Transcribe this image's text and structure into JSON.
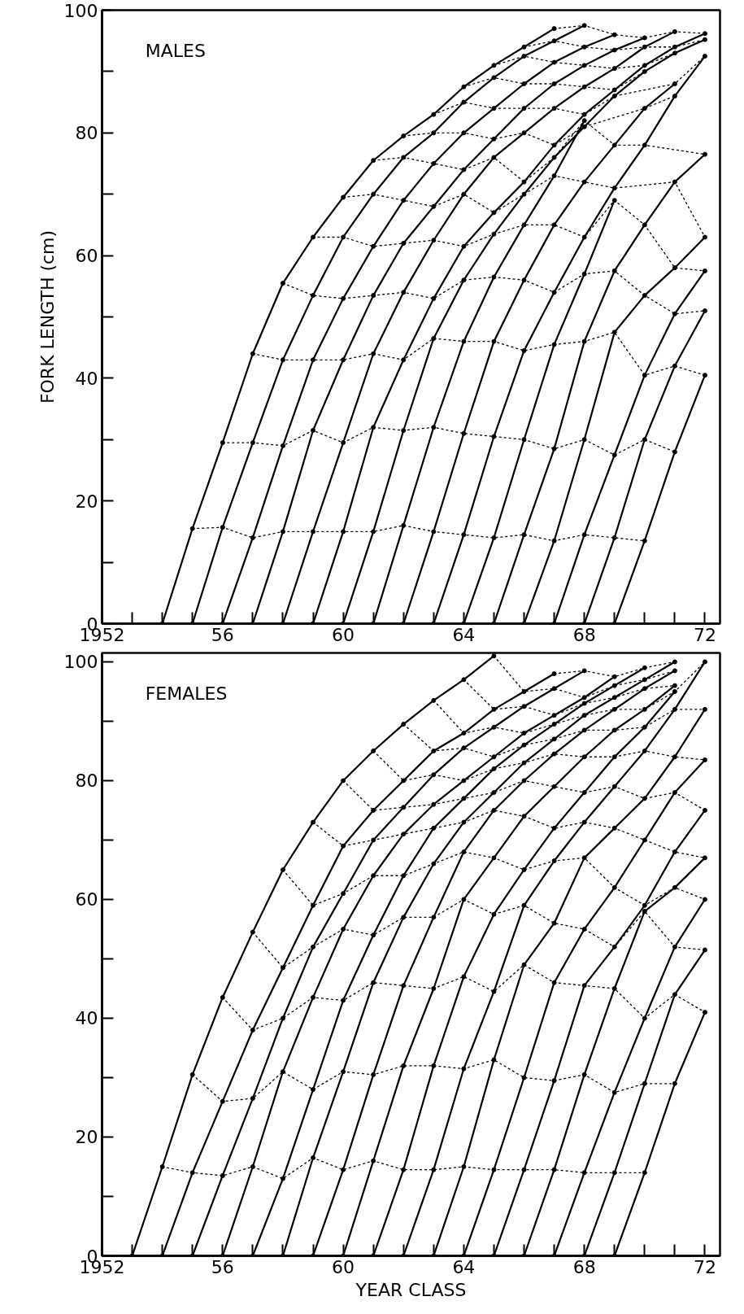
{
  "chart_data": [
    {
      "type": "line",
      "title": "MALES",
      "ylabel": "FORK LENGTH (cm)",
      "xlim": [
        1952,
        1972.5
      ],
      "ylim": [
        0,
        100
      ],
      "grid": false,
      "xticks": [
        {
          "value": 1952,
          "label": "1952"
        },
        {
          "value": 1953,
          "label": null
        },
        {
          "value": 1954,
          "label": null
        },
        {
          "value": 1955,
          "label": null
        },
        {
          "value": 1956,
          "label": "56"
        },
        {
          "value": 1957,
          "label": null
        },
        {
          "value": 1958,
          "label": null
        },
        {
          "value": 1959,
          "label": null
        },
        {
          "value": 1960,
          "label": "60"
        },
        {
          "value": 1961,
          "label": null
        },
        {
          "value": 1962,
          "label": null
        },
        {
          "value": 1963,
          "label": null
        },
        {
          "value": 1964,
          "label": "64"
        },
        {
          "value": 1965,
          "label": null
        },
        {
          "value": 1966,
          "label": null
        },
        {
          "value": 1967,
          "label": null
        },
        {
          "value": 1968,
          "label": "68"
        },
        {
          "value": 1969,
          "label": null
        },
        {
          "value": 1970,
          "label": null
        },
        {
          "value": 1971,
          "label": null
        },
        {
          "value": 1972,
          "label": "72"
        }
      ],
      "yticks": [
        0,
        {
          "value": 10,
          "label": null
        },
        20,
        {
          "value": 30,
          "label": null
        },
        40,
        {
          "value": 50,
          "label": null
        },
        60,
        {
          "value": 70,
          "label": null
        },
        80,
        {
          "value": 90,
          "label": null
        },
        100
      ],
      "series": [
        {
          "color": "#000000",
          "marker": "circle",
          "line_style": "solid",
          "x": [
            1954,
            1955,
            1956,
            1957,
            1958,
            1959,
            1960,
            1961,
            1962,
            1963,
            1964,
            1965,
            1966,
            1967
          ],
          "values": [
            0,
            15.5,
            29.5,
            44,
            55.5,
            63,
            69.5,
            75.5,
            79.5,
            83,
            87.5,
            91,
            94,
            97
          ]
        },
        {
          "color": "#000000",
          "marker": "circle",
          "line_style": "solid",
          "x": [
            1955,
            1956,
            1957,
            1958,
            1959,
            1960,
            1961,
            1962,
            1963,
            1964,
            1965,
            1966,
            1967,
            1968
          ],
          "values": [
            0,
            15.7,
            29.5,
            43,
            53.5,
            63,
            70,
            76,
            80,
            85,
            89,
            92.5,
            95,
            97.5
          ]
        },
        {
          "color": "#000000",
          "marker": "circle",
          "line_style": "solid",
          "x": [
            1956,
            1957,
            1958,
            1959,
            1960,
            1961,
            1962,
            1963,
            1964,
            1965,
            1966,
            1967,
            1968,
            1969
          ],
          "values": [
            0,
            14,
            29,
            43,
            53,
            61.5,
            69,
            75,
            80,
            84,
            88,
            91.5,
            94,
            96
          ]
        },
        {
          "color": "#000000",
          "marker": "circle",
          "line_style": "solid",
          "x": [
            1957,
            1958,
            1959,
            1960,
            1961,
            1962,
            1963,
            1964,
            1965,
            1966,
            1967,
            1968,
            1969,
            1970
          ],
          "values": [
            0,
            15,
            31.5,
            43,
            53.5,
            62,
            68,
            74,
            79,
            84,
            88,
            91,
            93.5,
            95.5
          ]
        },
        {
          "color": "#000000",
          "marker": "circle",
          "line_style": "solid",
          "x": [
            1958,
            1959,
            1960,
            1961,
            1962,
            1963,
            1964,
            1965,
            1966,
            1967,
            1968,
            1969,
            1970,
            1971
          ],
          "values": [
            0,
            15,
            29.5,
            44,
            54,
            62.5,
            70,
            76,
            80,
            84,
            87.5,
            90.5,
            94,
            96.5
          ]
        },
        {
          "color": "#000000",
          "marker": "circle",
          "line_style": "solid",
          "x": [
            1959,
            1960,
            1961,
            1962,
            1963,
            1964,
            1965,
            1966,
            1967,
            1968,
            1969,
            1970,
            1971,
            1972
          ],
          "values": [
            0,
            15,
            32,
            43,
            53,
            61.5,
            67,
            72,
            78,
            83,
            87,
            91,
            94,
            96.2
          ]
        },
        {
          "color": "#000000",
          "marker": "circle",
          "line_style": "solid",
          "x": [
            1960,
            1961,
            1962,
            1963,
            1964,
            1965,
            1966,
            1967,
            1968,
            1969,
            1970,
            1971,
            1972
          ],
          "values": [
            0,
            15,
            31.5,
            46.5,
            56,
            63.5,
            70,
            76,
            81,
            86,
            90,
            93,
            95.2
          ]
        },
        {
          "color": "#000000",
          "marker": "circle",
          "line_style": "solid",
          "x": [
            1961,
            1962,
            1963,
            1964,
            1965,
            1966,
            1967,
            1968
          ],
          "values": [
            0,
            16,
            32,
            46,
            56.5,
            65,
            73,
            82
          ]
        },
        {
          "color": "#000000",
          "marker": "circle",
          "line_style": "solid",
          "x": [
            1962,
            1963,
            1964,
            1965,
            1966,
            1967,
            1968,
            1969,
            1970,
            1971
          ],
          "values": [
            0,
            15,
            31,
            46,
            56,
            65,
            72,
            78,
            84,
            88
          ]
        },
        {
          "color": "#000000",
          "marker": "circle",
          "line_style": "solid",
          "x": [
            1963,
            1964,
            1965,
            1966,
            1967,
            1968,
            1969,
            1970,
            1971,
            1972
          ],
          "values": [
            0,
            14.5,
            30.5,
            44.5,
            54,
            63,
            71,
            78,
            86,
            92.5
          ]
        },
        {
          "color": "#000000",
          "marker": "circle",
          "line_style": "solid",
          "x": [
            1964,
            1965,
            1966,
            1967,
            1968,
            1969
          ],
          "values": [
            0,
            14,
            30,
            45.5,
            57,
            69
          ]
        },
        {
          "color": "#000000",
          "marker": "circle",
          "line_style": "solid",
          "x": [
            1965,
            1966,
            1967,
            1968,
            1969,
            1970,
            1971,
            1972
          ],
          "values": [
            0,
            14.5,
            28.5,
            46,
            57.5,
            65,
            72,
            76.5
          ]
        },
        {
          "color": "#000000",
          "marker": "circle",
          "line_style": "solid",
          "x": [
            1966,
            1967,
            1968,
            1969,
            1970,
            1971,
            1972
          ],
          "values": [
            0,
            13.5,
            30,
            47.5,
            53.5,
            58,
            63
          ]
        },
        {
          "color": "#000000",
          "marker": "circle",
          "line_style": "solid",
          "x": [
            1967,
            1968,
            1969,
            1970,
            1971,
            1972
          ],
          "values": [
            0,
            14.5,
            27.5,
            40.5,
            50.5,
            57.5
          ]
        },
        {
          "color": "#000000",
          "marker": "circle",
          "line_style": "solid",
          "x": [
            1968,
            1969,
            1970,
            1971,
            1972
          ],
          "values": [
            0,
            14,
            30,
            42,
            51
          ]
        },
        {
          "color": "#000000",
          "marker": "circle",
          "line_style": "solid",
          "x": [
            1969,
            1970,
            1971,
            1972
          ],
          "values": [
            0,
            13.5,
            28,
            40.5
          ]
        },
        {
          "color": "#000000",
          "marker": "none",
          "line_style": "dotted",
          "x": [
            1955,
            1956,
            1957,
            1958,
            1959,
            1960,
            1961,
            1962,
            1963,
            1964,
            1965,
            1966,
            1967,
            1968,
            1969,
            1970
          ],
          "values": [
            15.5,
            15.7,
            14,
            15,
            15,
            15,
            15,
            16,
            15,
            14.5,
            14,
            14.5,
            13.5,
            14.5,
            14,
            13.5
          ]
        },
        {
          "color": "#000000",
          "marker": "none",
          "line_style": "dotted",
          "x": [
            1956,
            1957,
            1958,
            1959,
            1960,
            1961,
            1962,
            1963,
            1964,
            1965,
            1966,
            1967,
            1968,
            1969,
            1970,
            1971
          ],
          "values": [
            29.5,
            29.5,
            29,
            31.5,
            29.5,
            32,
            31.5,
            32,
            31,
            30.5,
            30,
            28.5,
            30,
            27.5,
            30,
            28
          ]
        },
        {
          "color": "#000000",
          "marker": "none",
          "line_style": "dotted",
          "x": [
            1957,
            1958,
            1959,
            1960,
            1961,
            1962,
            1963,
            1964,
            1965,
            1966,
            1967,
            1968,
            1969,
            1970,
            1971,
            1972
          ],
          "values": [
            44,
            43,
            43,
            43,
            44,
            43,
            46.5,
            46,
            46,
            44.5,
            45.5,
            46,
            47.5,
            40.5,
            42,
            40.5
          ]
        },
        {
          "color": "#000000",
          "marker": "none",
          "line_style": "dotted",
          "x": [
            1958,
            1959,
            1960,
            1961,
            1962,
            1963,
            1964,
            1965,
            1966,
            1967,
            1968,
            1969,
            1970,
            1971,
            1972
          ],
          "values": [
            55.5,
            53.5,
            53,
            53.5,
            54,
            53,
            56,
            56.5,
            56,
            54,
            57,
            57.5,
            53.5,
            50.5,
            51
          ]
        },
        {
          "color": "#000000",
          "marker": "none",
          "line_style": "dotted",
          "x": [
            1959,
            1960,
            1961,
            1962,
            1963,
            1964,
            1965,
            1966,
            1967,
            1968,
            1969,
            1970,
            1971,
            1972
          ],
          "values": [
            63,
            63,
            61.5,
            62,
            62.5,
            61.5,
            63.5,
            65,
            65,
            63,
            69,
            65,
            58,
            57.5
          ]
        },
        {
          "color": "#000000",
          "marker": "none",
          "line_style": "dotted",
          "x": [
            1960,
            1961,
            1962,
            1963,
            1964,
            1965,
            1966,
            1967,
            1968,
            1969,
            1971,
            1972
          ],
          "values": [
            69.5,
            70,
            69,
            68,
            70,
            67,
            70,
            73,
            72,
            71,
            72,
            63
          ]
        },
        {
          "color": "#000000",
          "marker": "none",
          "line_style": "dotted",
          "x": [
            1961,
            1962,
            1963,
            1964,
            1965,
            1966,
            1967,
            1968,
            1969,
            1970,
            1972
          ],
          "values": [
            75.5,
            76,
            75,
            74,
            76,
            72,
            76,
            82,
            78,
            78,
            76.5
          ]
        },
        {
          "color": "#000000",
          "marker": "none",
          "line_style": "dotted",
          "x": [
            1962,
            1963,
            1964,
            1965,
            1966,
            1967,
            1968,
            1970,
            1971
          ],
          "values": [
            79.5,
            80,
            80,
            79,
            80,
            78,
            81,
            84,
            86
          ]
        },
        {
          "color": "#000000",
          "marker": "none",
          "line_style": "dotted",
          "x": [
            1963,
            1964,
            1965,
            1966,
            1967,
            1968,
            1969,
            1971,
            1972
          ],
          "values": [
            83,
            85,
            84,
            84,
            84,
            83,
            86,
            88,
            92.5
          ]
        },
        {
          "color": "#000000",
          "marker": "none",
          "line_style": "dotted",
          "x": [
            1964,
            1965,
            1966,
            1967,
            1968,
            1969,
            1970
          ],
          "values": [
            87.5,
            89,
            88,
            88,
            87.5,
            87,
            90
          ]
        },
        {
          "color": "#000000",
          "marker": "none",
          "line_style": "dotted",
          "x": [
            1965,
            1966,
            1967,
            1968,
            1969,
            1970,
            1971
          ],
          "values": [
            91,
            92.5,
            91.5,
            91,
            90.5,
            91,
            93
          ]
        },
        {
          "color": "#000000",
          "marker": "none",
          "line_style": "dotted",
          "x": [
            1966,
            1967,
            1968,
            1969,
            1970,
            1971,
            1972
          ],
          "values": [
            94,
            95,
            94,
            93.5,
            94,
            94,
            95.2
          ]
        },
        {
          "color": "#000000",
          "marker": "none",
          "line_style": "dotted",
          "x": [
            1967,
            1968,
            1969,
            1970,
            1971,
            1972
          ],
          "values": [
            97,
            97.5,
            96,
            95.5,
            96.5,
            96.2
          ]
        }
      ]
    },
    {
      "type": "line",
      "title": "FEMALES",
      "xlabel": "YEAR CLASS",
      "xlim": [
        1952,
        1972.5
      ],
      "ylim": [
        0,
        101.5
      ],
      "grid": false,
      "xticks": [
        {
          "value": 1952,
          "label": "1952"
        },
        {
          "value": 1953,
          "label": null
        },
        {
          "value": 1954,
          "label": null
        },
        {
          "value": 1955,
          "label": null
        },
        {
          "value": 1956,
          "label": "56"
        },
        {
          "value": 1957,
          "label": null
        },
        {
          "value": 1958,
          "label": null
        },
        {
          "value": 1959,
          "label": null
        },
        {
          "value": 1960,
          "label": "60"
        },
        {
          "value": 1961,
          "label": null
        },
        {
          "value": 1962,
          "label": null
        },
        {
          "value": 1963,
          "label": null
        },
        {
          "value": 1964,
          "label": "64"
        },
        {
          "value": 1965,
          "label": null
        },
        {
          "value": 1966,
          "label": null
        },
        {
          "value": 1967,
          "label": null
        },
        {
          "value": 1968,
          "label": "68"
        },
        {
          "value": 1969,
          "label": null
        },
        {
          "value": 1970,
          "label": null
        },
        {
          "value": 1971,
          "label": null
        },
        {
          "value": 1972,
          "label": "72"
        }
      ],
      "yticks": [
        0,
        {
          "value": 10,
          "label": null
        },
        20,
        {
          "value": 30,
          "label": null
        },
        40,
        {
          "value": 50,
          "label": null
        },
        60,
        {
          "value": 70,
          "label": null
        },
        80,
        {
          "value": 90,
          "label": null
        },
        100
      ],
      "series": [
        {
          "color": "#000000",
          "marker": "circle",
          "line_style": "solid",
          "x": [
            1953,
            1954,
            1955,
            1956,
            1957,
            1958,
            1959,
            1960,
            1961,
            1962,
            1963,
            1964,
            1965
          ],
          "values": [
            0,
            15,
            30.5,
            43.5,
            54.5,
            65,
            73,
            80,
            85,
            89.5,
            93.5,
            97,
            101
          ]
        },
        {
          "color": "#000000",
          "marker": "circle",
          "line_style": "solid",
          "x": [
            1954,
            1955,
            1956,
            1957,
            1958,
            1959,
            1960,
            1961,
            1962,
            1963,
            1964,
            1965,
            1966,
            1967
          ],
          "values": [
            0,
            14,
            26,
            38,
            48.5,
            59,
            69,
            75,
            80,
            85,
            88,
            92,
            95,
            98
          ]
        },
        {
          "color": "#000000",
          "marker": "circle",
          "line_style": "solid",
          "x": [
            1955,
            1956,
            1957,
            1958,
            1959,
            1960,
            1961,
            1962,
            1963,
            1964,
            1965,
            1966,
            1967,
            1968
          ],
          "values": [
            0,
            13.5,
            26.5,
            40,
            52,
            61,
            70,
            75.5,
            81,
            85.5,
            89,
            92.5,
            95.5,
            98.5
          ]
        },
        {
          "color": "#000000",
          "marker": "circle",
          "line_style": "solid",
          "x": [
            1956,
            1957,
            1958,
            1959,
            1960,
            1961,
            1962,
            1963,
            1964,
            1965,
            1966,
            1967,
            1968,
            1969
          ],
          "values": [
            0,
            15,
            31,
            43.5,
            55,
            64,
            71,
            76,
            80,
            84,
            88,
            91,
            94,
            97.5
          ]
        },
        {
          "color": "#000000",
          "marker": "circle",
          "line_style": "solid",
          "x": [
            1957,
            1958,
            1959,
            1960,
            1961,
            1962,
            1963,
            1964,
            1965,
            1966,
            1967,
            1968,
            1969,
            1970
          ],
          "values": [
            0,
            13,
            28,
            43,
            54,
            64,
            72,
            77,
            82,
            86,
            89.5,
            93,
            96,
            99
          ]
        },
        {
          "color": "#000000",
          "marker": "circle",
          "line_style": "solid",
          "x": [
            1958,
            1959,
            1960,
            1961,
            1962,
            1963,
            1964,
            1965,
            1966,
            1967,
            1968,
            1969,
            1970,
            1971
          ],
          "values": [
            0,
            16.5,
            31,
            46,
            57,
            66,
            73,
            78,
            83,
            87,
            91,
            94,
            97,
            100
          ]
        },
        {
          "color": "#000000",
          "marker": "circle",
          "line_style": "solid",
          "x": [
            1959,
            1960,
            1961,
            1962,
            1963,
            1964,
            1965,
            1966,
            1967,
            1968,
            1969,
            1970,
            1971
          ],
          "values": [
            0,
            14.5,
            30.5,
            45.5,
            57,
            68,
            75,
            80,
            84.5,
            88.5,
            92,
            95.5,
            98.5
          ]
        },
        {
          "color": "#000000",
          "marker": "circle",
          "line_style": "solid",
          "x": [
            1960,
            1961,
            1962,
            1963,
            1964,
            1965,
            1966,
            1967,
            1968,
            1969,
            1970,
            1971
          ],
          "values": [
            0,
            16,
            32,
            45,
            60,
            67,
            74,
            79,
            84,
            88.5,
            92,
            96
          ]
        },
        {
          "color": "#000000",
          "marker": "circle",
          "line_style": "solid",
          "x": [
            1961,
            1962,
            1963,
            1964,
            1965,
            1966,
            1967,
            1968,
            1969,
            1970,
            1971
          ],
          "values": [
            0,
            14.5,
            32,
            47,
            57.5,
            65,
            72,
            78,
            84,
            89,
            95
          ]
        },
        {
          "color": "#000000",
          "marker": "circle",
          "line_style": "solid",
          "x": [
            1962,
            1963,
            1964,
            1965,
            1966,
            1967,
            1968,
            1969,
            1970,
            1971,
            1972
          ],
          "values": [
            0,
            14.5,
            31.5,
            44.5,
            59,
            66.5,
            73,
            79,
            85,
            92,
            100
          ]
        },
        {
          "color": "#000000",
          "marker": "circle",
          "line_style": "solid",
          "x": [
            1963,
            1964,
            1965,
            1966,
            1967,
            1968,
            1969,
            1970,
            1971,
            1972
          ],
          "values": [
            0,
            15,
            33,
            49,
            56,
            67,
            72,
            77,
            84,
            92
          ]
        },
        {
          "color": "#000000",
          "marker": "circle",
          "line_style": "solid",
          "x": [
            1964,
            1965,
            1966,
            1967,
            1968,
            1969,
            1970,
            1971,
            1972
          ],
          "values": [
            0,
            14.5,
            30,
            46,
            55,
            62,
            70,
            78,
            83.5
          ]
        },
        {
          "color": "#000000",
          "marker": "circle",
          "line_style": "solid",
          "x": [
            1965,
            1966,
            1967,
            1968,
            1969,
            1970,
            1971,
            1972
          ],
          "values": [
            0,
            14.5,
            29.5,
            45.5,
            52,
            59,
            68,
            75
          ]
        },
        {
          "color": "#000000",
          "marker": "circle",
          "line_style": "solid",
          "x": [
            1966,
            1967,
            1968,
            1969,
            1970,
            1971,
            1972
          ],
          "values": [
            0,
            14.5,
            30.5,
            45,
            58,
            62,
            67
          ]
        },
        {
          "color": "#000000",
          "marker": "circle",
          "line_style": "solid",
          "x": [
            1967,
            1968,
            1969,
            1970,
            1971,
            1972
          ],
          "values": [
            0,
            14,
            27.5,
            40,
            52,
            60
          ]
        },
        {
          "color": "#000000",
          "marker": "circle",
          "line_style": "solid",
          "x": [
            1968,
            1969,
            1970,
            1971,
            1972
          ],
          "values": [
            0,
            14,
            29,
            44,
            51.5
          ]
        },
        {
          "color": "#000000",
          "marker": "circle",
          "line_style": "solid",
          "x": [
            1969,
            1970,
            1971,
            1972
          ],
          "values": [
            0,
            14,
            29,
            41
          ]
        },
        {
          "color": "#000000",
          "marker": "none",
          "line_style": "dotted",
          "x": [
            1954,
            1955,
            1956,
            1957,
            1958,
            1959,
            1960,
            1961,
            1962,
            1963,
            1964,
            1965,
            1966,
            1967,
            1968,
            1969,
            1970
          ],
          "values": [
            15,
            14,
            13.5,
            15,
            13,
            16.5,
            14.5,
            16,
            14.5,
            14.5,
            15,
            14.5,
            14.5,
            14.5,
            14,
            14,
            14
          ]
        },
        {
          "color": "#000000",
          "marker": "none",
          "line_style": "dotted",
          "x": [
            1955,
            1956,
            1957,
            1958,
            1959,
            1960,
            1961,
            1962,
            1963,
            1964,
            1965,
            1966,
            1967,
            1968,
            1969,
            1970,
            1971
          ],
          "values": [
            30.5,
            26,
            26.5,
            31,
            28,
            31,
            30.5,
            32,
            32,
            31.5,
            33,
            30,
            29.5,
            30.5,
            27.5,
            29,
            29
          ]
        },
        {
          "color": "#000000",
          "marker": "none",
          "line_style": "dotted",
          "x": [
            1956,
            1957,
            1958,
            1959,
            1960,
            1961,
            1962,
            1963,
            1964,
            1965,
            1966,
            1967,
            1968,
            1969,
            1970,
            1971,
            1972
          ],
          "values": [
            43.5,
            38,
            40,
            43.5,
            43,
            46,
            45.5,
            45,
            47,
            44.5,
            49,
            46,
            45.5,
            45,
            40,
            44,
            41
          ]
        },
        {
          "color": "#000000",
          "marker": "none",
          "line_style": "dotted",
          "x": [
            1957,
            1958,
            1959,
            1960,
            1961,
            1962,
            1963,
            1964,
            1965,
            1966,
            1967,
            1968,
            1969,
            1970,
            1971,
            1972
          ],
          "values": [
            54.5,
            48.5,
            52,
            55,
            54,
            57,
            57,
            60,
            57.5,
            59,
            56,
            55,
            52,
            58,
            52,
            51.5
          ]
        },
        {
          "color": "#000000",
          "marker": "none",
          "line_style": "dotted",
          "x": [
            1958,
            1959,
            1960,
            1961,
            1962,
            1963,
            1964,
            1965,
            1966,
            1967,
            1968,
            1969,
            1970,
            1971,
            1972
          ],
          "values": [
            65,
            59,
            61,
            64,
            64,
            66,
            68,
            67,
            65,
            66.5,
            67,
            62,
            59,
            62,
            60
          ]
        },
        {
          "color": "#000000",
          "marker": "none",
          "line_style": "dotted",
          "x": [
            1959,
            1960,
            1961,
            1962,
            1963,
            1964,
            1965,
            1966,
            1967,
            1968,
            1969,
            1970,
            1971,
            1972
          ],
          "values": [
            73,
            69,
            70,
            71,
            72,
            73,
            75,
            74,
            72,
            73,
            72,
            70,
            68,
            67
          ]
        },
        {
          "color": "#000000",
          "marker": "none",
          "line_style": "dotted",
          "x": [
            1960,
            1961,
            1962,
            1963,
            1964,
            1965,
            1966,
            1967,
            1968,
            1969,
            1970,
            1971,
            1972
          ],
          "values": [
            80,
            75,
            75.5,
            76,
            77,
            78,
            80,
            79,
            78,
            79,
            77,
            78,
            75
          ]
        },
        {
          "color": "#000000",
          "marker": "none",
          "line_style": "dotted",
          "x": [
            1961,
            1962,
            1963,
            1964,
            1965,
            1966,
            1967,
            1968,
            1969,
            1970,
            1971,
            1972
          ],
          "values": [
            85,
            80,
            81,
            80,
            82,
            83,
            84.5,
            84,
            84,
            85,
            84,
            83.5
          ]
        },
        {
          "color": "#000000",
          "marker": "none",
          "line_style": "dotted",
          "x": [
            1962,
            1963,
            1964,
            1965,
            1966,
            1967,
            1968,
            1969,
            1970,
            1971,
            1972
          ],
          "values": [
            89.5,
            85,
            85.5,
            84,
            86,
            87,
            88.5,
            88.5,
            89,
            92,
            92
          ]
        },
        {
          "color": "#000000",
          "marker": "none",
          "line_style": "dotted",
          "x": [
            1963,
            1964,
            1965,
            1966,
            1967,
            1968,
            1969,
            1970,
            1971,
            1972
          ],
          "values": [
            93.5,
            88,
            89,
            88,
            89.5,
            91,
            92,
            92,
            95,
            100
          ]
        },
        {
          "color": "#000000",
          "marker": "none",
          "line_style": "dotted",
          "x": [
            1964,
            1965,
            1966,
            1967,
            1968,
            1969,
            1970,
            1971
          ],
          "values": [
            97,
            92,
            92.5,
            91,
            93,
            94,
            95.5,
            96
          ]
        },
        {
          "color": "#000000",
          "marker": "none",
          "line_style": "dotted",
          "x": [
            1965,
            1966,
            1967,
            1968,
            1969,
            1970,
            1971
          ],
          "values": [
            101,
            95,
            95.5,
            94,
            96,
            97,
            98.5
          ]
        },
        {
          "color": "#000000",
          "marker": "none",
          "line_style": "dotted",
          "x": [
            1967,
            1968,
            1969,
            1970,
            1971
          ],
          "values": [
            98,
            98.5,
            97.5,
            99,
            100
          ]
        }
      ]
    }
  ]
}
